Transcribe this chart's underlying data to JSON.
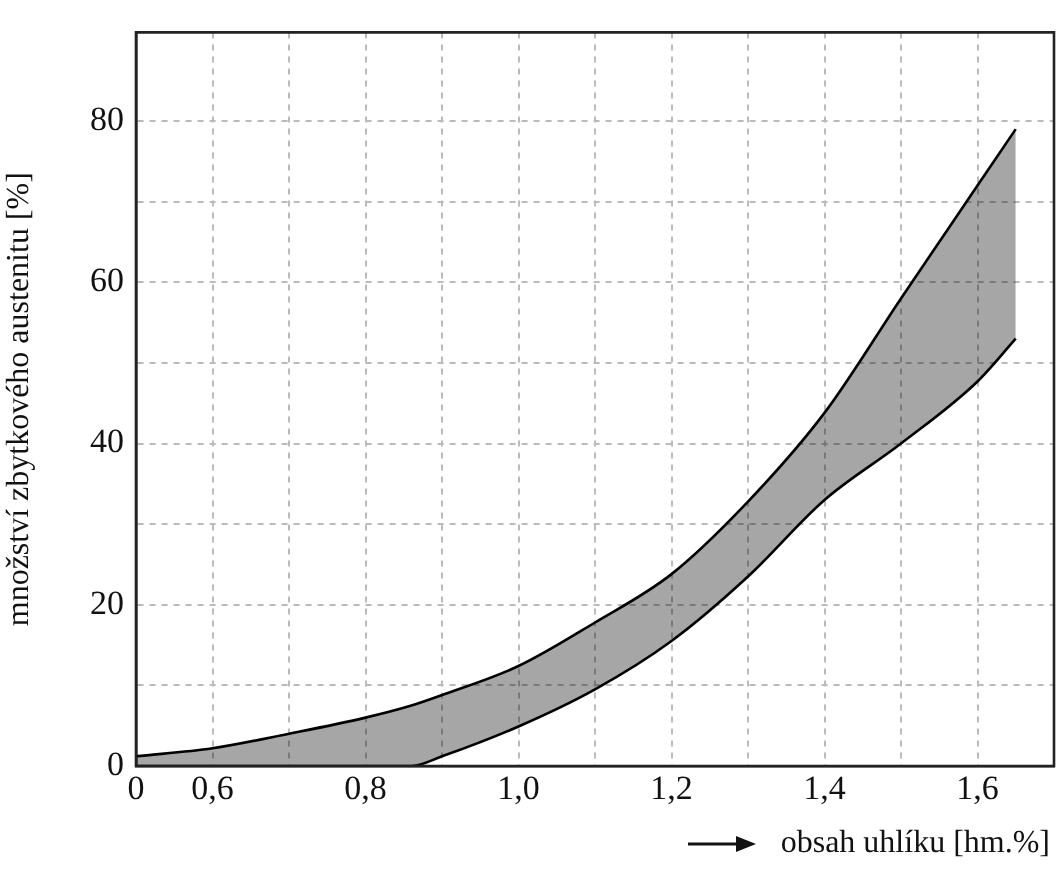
{
  "chart_data": {
    "type": "area",
    "xlabel": "obsah uhlíku [hm.%]",
    "ylabel": "množství zbytkového austenitu [%]",
    "x": [
      0.5,
      0.6,
      0.7,
      0.8,
      0.86,
      0.9,
      1.0,
      1.1,
      1.2,
      1.3,
      1.4,
      1.5,
      1.6,
      1.65
    ],
    "series": [
      {
        "type": "line",
        "color": "#000000",
        "values": [
          0,
          0,
          0,
          0,
          0,
          1.2,
          4.9,
          9.5,
          15.5,
          23.5,
          33,
          40,
          47.7,
          53
        ]
      },
      {
        "color": "#000000",
        "values": [
          1.2,
          2.2,
          4,
          6,
          7.5,
          8.8,
          12.4,
          17.8,
          23.8,
          32.8,
          43.8,
          58,
          72,
          79
        ]
      }
    ],
    "xlim": [
      0.5,
      1.7
    ],
    "ylim": [
      0,
      91
    ],
    "xticks": [
      {
        "value": 0.5,
        "label": "0"
      },
      {
        "value": 0.6,
        "label": "0,6"
      },
      {
        "value": 0.7,
        "label": null
      },
      {
        "value": 0.8,
        "label": "0,8"
      },
      {
        "value": 0.9,
        "label": null
      },
      {
        "value": 1.0,
        "label": "1,0"
      },
      {
        "value": 1.1,
        "label": null
      },
      {
        "value": 1.2,
        "label": "1,2"
      },
      {
        "value": 1.3,
        "label": null
      },
      {
        "value": 1.4,
        "label": "1,4"
      },
      {
        "value": 1.5,
        "label": null
      },
      {
        "value": 1.6,
        "label": "1,6"
      }
    ],
    "yticks": [
      0,
      {
        "value": 10,
        "label": null
      },
      20,
      {
        "value": 30,
        "label": null
      },
      40,
      {
        "value": 50,
        "label": null
      },
      60,
      {
        "value": 70,
        "label": null
      },
      80
    ],
    "grid": true,
    "legend": false
  }
}
